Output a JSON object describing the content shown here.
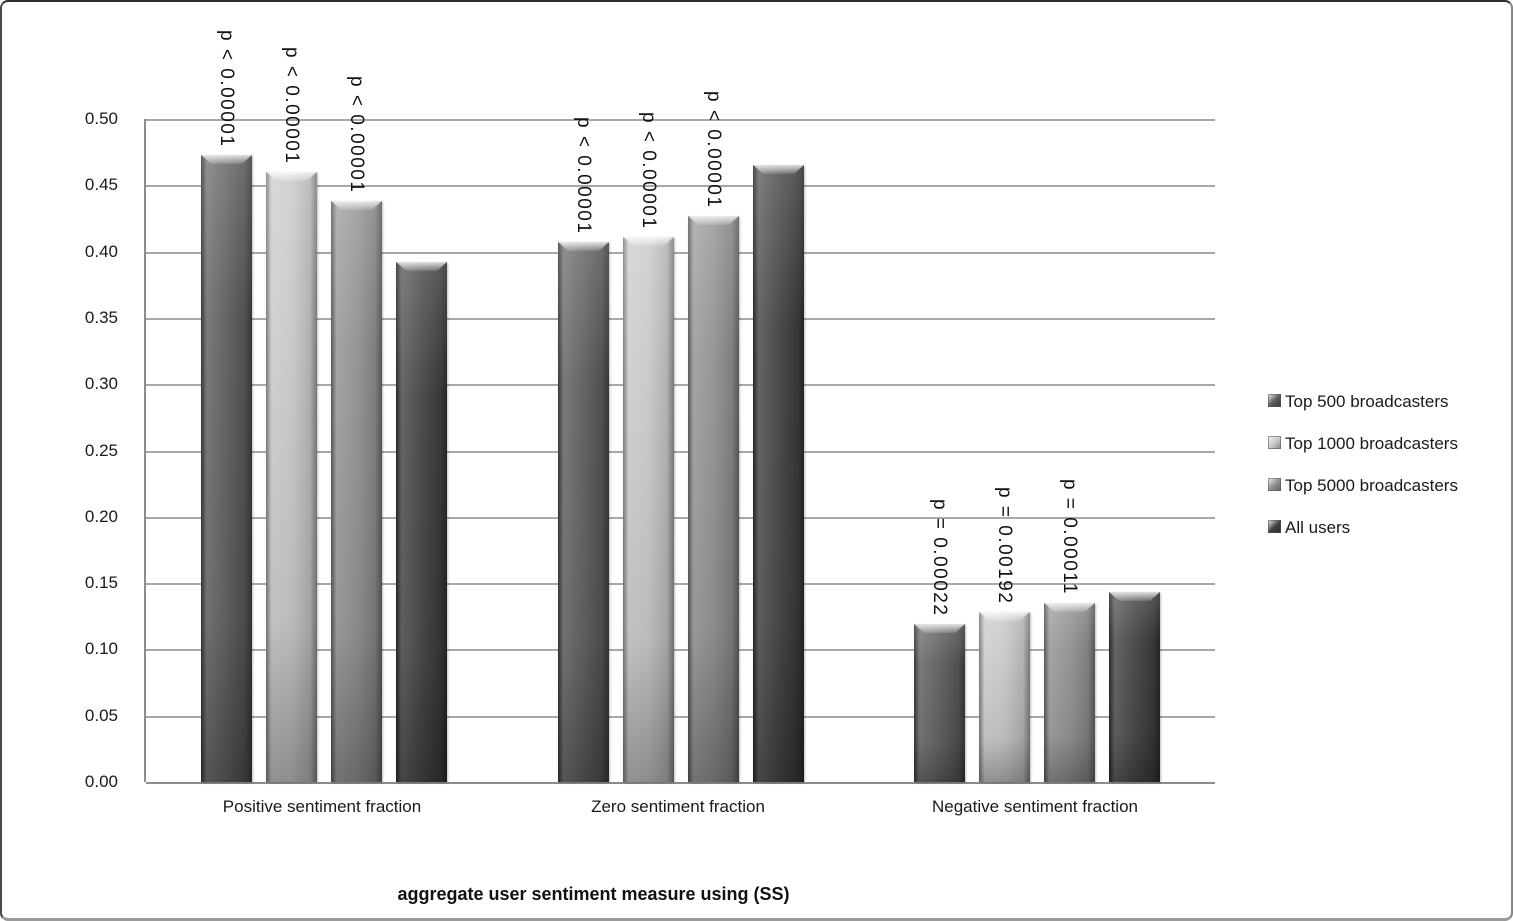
{
  "chart_data": {
    "type": "bar",
    "title": "",
    "xlabel": "aggregate user sentiment measure using (SS)",
    "ylabel": "",
    "ylim": [
      0,
      0.5
    ],
    "ytick_step": 0.05,
    "ytick_labels": [
      "0.50",
      "0.45",
      "0.40",
      "0.35",
      "0.30",
      "0.25",
      "0.20",
      "0.15",
      "0.10",
      "0.05",
      "0.00"
    ],
    "grid": true,
    "legend_position": "right",
    "categories": [
      "Positive sentiment fraction",
      "Zero sentiment fraction",
      "Negative sentiment fraction"
    ],
    "series": [
      {
        "name": "Top 500 broadcasters",
        "color": "#595959",
        "values": [
          0.473,
          0.407,
          0.119
        ],
        "p_labels": [
          "p < 0.00001",
          "p < 0.00001",
          "p = 0.00022"
        ]
      },
      {
        "name": "Top 1000 broadcasters",
        "color": "#c6c6c6",
        "values": [
          0.46,
          0.411,
          0.128
        ],
        "p_labels": [
          "p < 0.00001",
          "p < 0.00001",
          "p = 0.00192"
        ]
      },
      {
        "name": "Top 5000 broadcasters",
        "color": "#8e8e8e",
        "values": [
          0.438,
          0.427,
          0.135
        ],
        "p_labels": [
          "p < 0.00001",
          "p < 0.00001",
          "p = 0.00011"
        ]
      },
      {
        "name": "All users",
        "color": "#3f3f3f",
        "values": [
          0.392,
          0.465,
          0.143
        ],
        "p_labels": [
          "",
          "",
          ""
        ]
      }
    ]
  }
}
